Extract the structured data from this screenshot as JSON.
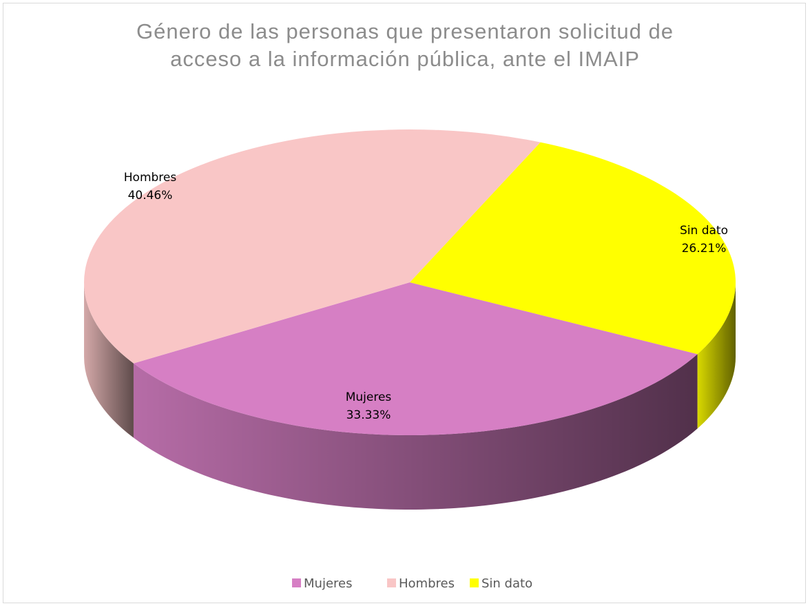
{
  "chart_data": {
    "type": "pie",
    "title": "Género de las personas que presentaron solicitud  de acceso a la información pública, ante el IMAIP",
    "categories": [
      "Mujeres",
      "Hombres",
      "Sin dato"
    ],
    "values": [
      33.33,
      40.46,
      26.21
    ],
    "value_labels": [
      "33.33%",
      "40.46%",
      "26.21%"
    ],
    "colors": [
      "#d67fc4",
      "#f9c6c6",
      "#ffff00"
    ],
    "legend": "bottom"
  }
}
